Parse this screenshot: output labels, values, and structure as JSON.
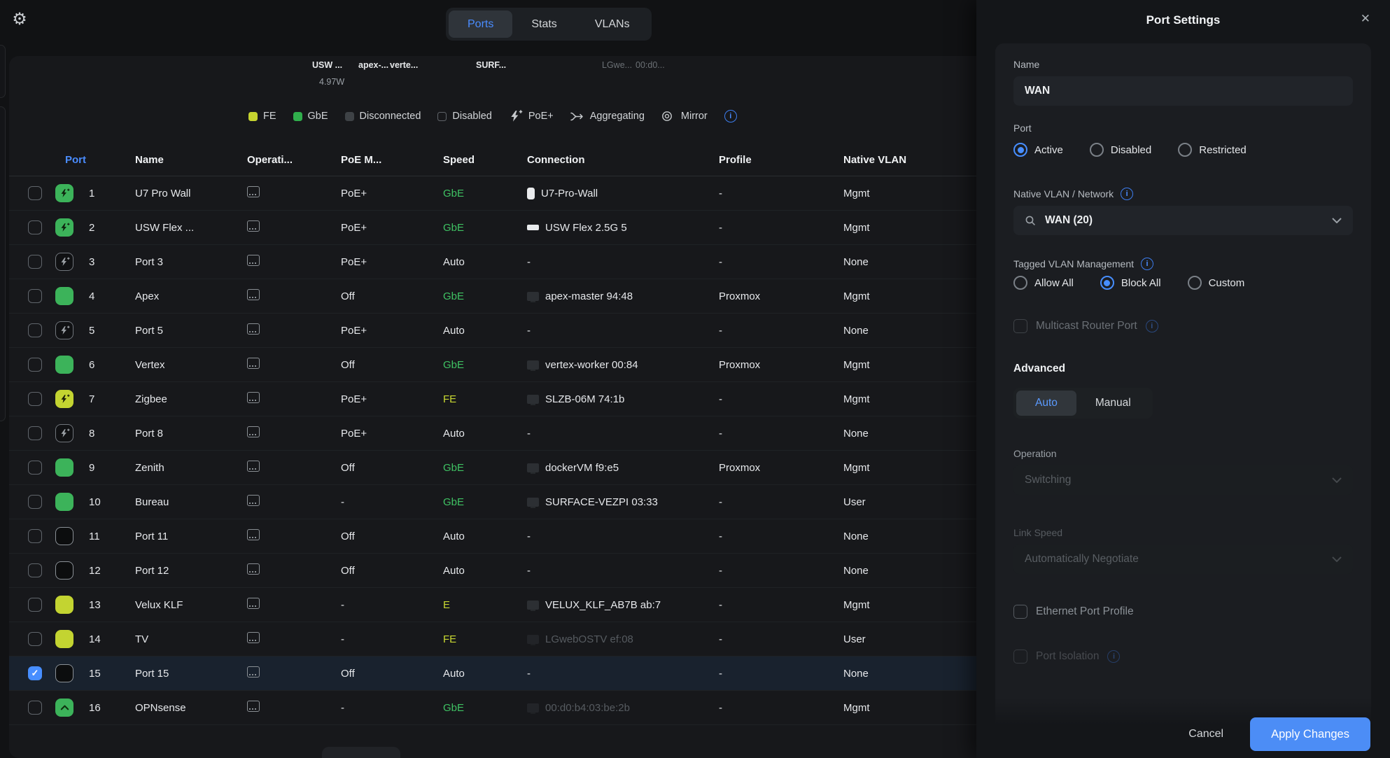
{
  "topbar": {
    "tabs": [
      {
        "label": "Ports",
        "active": true
      },
      {
        "label": "Stats",
        "active": false
      },
      {
        "label": "VLANs",
        "active": false
      }
    ]
  },
  "device_labels": [
    {
      "text": "USW ...",
      "dim": false
    },
    {
      "text": "apex-...",
      "dim": false
    },
    {
      "text": "verte...",
      "dim": false
    },
    {
      "text": "SURF...",
      "dim": false
    },
    {
      "text": "LGwe...",
      "dim": true
    },
    {
      "text": "00:d0...",
      "dim": true
    }
  ],
  "power_label": "4.97W",
  "legend": {
    "items": [
      {
        "icon": "fe-swatch",
        "label": "FE",
        "color": "#c5d32f"
      },
      {
        "icon": "gbe-swatch",
        "label": "GbE",
        "color": "#30ae4c"
      },
      {
        "icon": "disconnected-swatch",
        "label": "Disconnected",
        "color": "#3e4246"
      },
      {
        "icon": "disabled-swatch",
        "label": "Disabled",
        "color": "outline"
      },
      {
        "icon": "poe-bolt-icon",
        "label": "PoE+"
      },
      {
        "icon": "aggregating-icon",
        "label": "Aggregating"
      },
      {
        "icon": "mirror-icon",
        "label": "Mirror"
      }
    ]
  },
  "table": {
    "columns": [
      "Port",
      "Name",
      "Operati...",
      "PoE M...",
      "Speed",
      "Connection",
      "Profile",
      "Native VLAN"
    ],
    "sorted_column": "Port",
    "rows": [
      {
        "num": "1",
        "name": "U7 Pro Wall",
        "icon": "poe-green",
        "poe": "PoE+",
        "speed": "GbE",
        "speed_style": "green",
        "conn": "U7-Pro-Wall",
        "conn_icon": "ap",
        "conn_dim": false,
        "profile": "-",
        "vlan": "Mgmt",
        "selected": false
      },
      {
        "num": "2",
        "name": "USW Flex ...",
        "icon": "poe-green",
        "poe": "PoE+",
        "speed": "GbE",
        "speed_style": "green",
        "conn": "USW Flex 2.5G 5",
        "conn_icon": "switch",
        "conn_dim": false,
        "profile": "-",
        "vlan": "Mgmt",
        "selected": false
      },
      {
        "num": "3",
        "name": "Port 3",
        "icon": "poe-idle",
        "poe": "PoE+",
        "speed": "Auto",
        "speed_style": "plain",
        "conn": "-",
        "conn_icon": null,
        "conn_dim": false,
        "profile": "-",
        "vlan": "None",
        "selected": false
      },
      {
        "num": "4",
        "name": "Apex",
        "icon": "green",
        "poe": "Off",
        "speed": "GbE",
        "speed_style": "green",
        "conn": "apex-master 94:48",
        "conn_icon": "client",
        "conn_dim": false,
        "profile": "Proxmox",
        "vlan": "Mgmt",
        "selected": false
      },
      {
        "num": "5",
        "name": "Port 5",
        "icon": "poe-idle",
        "poe": "PoE+",
        "speed": "Auto",
        "speed_style": "plain",
        "conn": "-",
        "conn_icon": null,
        "conn_dim": false,
        "profile": "-",
        "vlan": "None",
        "selected": false
      },
      {
        "num": "6",
        "name": "Vertex",
        "icon": "green",
        "poe": "Off",
        "speed": "GbE",
        "speed_style": "green",
        "conn": "vertex-worker 00:84",
        "conn_icon": "client",
        "conn_dim": false,
        "profile": "Proxmox",
        "vlan": "Mgmt",
        "selected": false
      },
      {
        "num": "7",
        "name": "Zigbee",
        "icon": "poe-yellow",
        "poe": "PoE+",
        "speed": "FE",
        "speed_style": "fe",
        "conn": "SLZB-06M 74:1b",
        "conn_icon": "client",
        "conn_dim": false,
        "profile": "-",
        "vlan": "Mgmt",
        "selected": false
      },
      {
        "num": "8",
        "name": "Port 8",
        "icon": "poe-idle",
        "poe": "PoE+",
        "speed": "Auto",
        "speed_style": "plain",
        "conn": "-",
        "conn_icon": null,
        "conn_dim": false,
        "profile": "-",
        "vlan": "None",
        "selected": false
      },
      {
        "num": "9",
        "name": "Zenith",
        "icon": "green",
        "poe": "Off",
        "speed": "GbE",
        "speed_style": "green",
        "conn": "dockerVM f9:e5",
        "conn_icon": "client",
        "conn_dim": false,
        "profile": "Proxmox",
        "vlan": "Mgmt",
        "selected": false
      },
      {
        "num": "10",
        "name": "Bureau",
        "icon": "green",
        "poe": "-",
        "speed": "GbE",
        "speed_style": "green",
        "conn": "SURFACE-VEZPI 03:33",
        "conn_icon": "client",
        "conn_dim": false,
        "profile": "-",
        "vlan": "User",
        "selected": false
      },
      {
        "num": "11",
        "name": "Port 11",
        "icon": "dark",
        "poe": "Off",
        "speed": "Auto",
        "speed_style": "plain",
        "conn": "-",
        "conn_icon": null,
        "conn_dim": false,
        "profile": "-",
        "vlan": "None",
        "selected": false
      },
      {
        "num": "12",
        "name": "Port 12",
        "icon": "dark",
        "poe": "Off",
        "speed": "Auto",
        "speed_style": "plain",
        "conn": "-",
        "conn_icon": null,
        "conn_dim": false,
        "profile": "-",
        "vlan": "None",
        "selected": false
      },
      {
        "num": "13",
        "name": "Velux KLF",
        "icon": "yellow",
        "poe": "-",
        "speed": "E",
        "speed_style": "fe",
        "conn": "VELUX_KLF_AB7B ab:7",
        "conn_icon": "client",
        "conn_dim": false,
        "profile": "-",
        "vlan": "Mgmt",
        "selected": false
      },
      {
        "num": "14",
        "name": "TV",
        "icon": "yellow",
        "poe": "-",
        "speed": "FE",
        "speed_style": "fe",
        "conn": "LGwebOSTV ef:08",
        "conn_icon": "client",
        "conn_dim": true,
        "profile": "-",
        "vlan": "User",
        "selected": false
      },
      {
        "num": "15",
        "name": "Port 15",
        "icon": "dark",
        "poe": "Off",
        "speed": "Auto",
        "speed_style": "plain",
        "conn": "-",
        "conn_icon": null,
        "conn_dim": false,
        "profile": "-",
        "vlan": "None",
        "selected": true
      },
      {
        "num": "16",
        "name": "OPNsense",
        "icon": "uplink",
        "poe": "-",
        "speed": "GbE",
        "speed_style": "green",
        "conn": "00:d0:b4:03:be:2b",
        "conn_icon": "client",
        "conn_dim": true,
        "profile": "-",
        "vlan": "Mgmt",
        "selected": false
      }
    ]
  },
  "panel": {
    "title": "Port Settings",
    "name_label": "Name",
    "name_value": "WAN",
    "port_label": "Port",
    "port_options": [
      "Active",
      "Disabled",
      "Restricted"
    ],
    "port_selected": "Active",
    "native_vlan_label": "Native VLAN / Network",
    "native_vlan_value": "WAN (20)",
    "tagged_label": "Tagged VLAN Management",
    "tagged_options": [
      "Allow All",
      "Block All",
      "Custom"
    ],
    "tagged_selected": "Block All",
    "multicast_label": "Multicast Router Port",
    "advanced_label": "Advanced",
    "mode_options": [
      "Auto",
      "Manual"
    ],
    "mode_selected": "Auto",
    "operation_label": "Operation",
    "operation_value": "Switching",
    "link_speed_label": "Link Speed",
    "link_speed_value": "Automatically Negotiate",
    "ethernet_profile_label": "Ethernet Port Profile",
    "port_isolation_label": "Port Isolation",
    "cancel_label": "Cancel",
    "apply_label": "Apply Changes"
  },
  "colors": {
    "accent_blue": "#478eff",
    "gbe_green": "#3cb35a",
    "fe_yellow": "#c3d431",
    "disconnected_gray": "#3e4246",
    "selected_row": "#19222e",
    "apply_button": "#4c8df6"
  }
}
